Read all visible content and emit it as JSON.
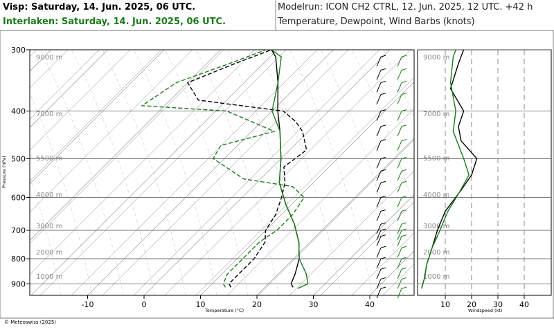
{
  "header": {
    "visp_title": "Visp: Saturday, 14. Jun. 2025, 06 UTC.",
    "interlaken_title": "Interlaken: Saturday, 14. Jun. 2025, 06 UTC.",
    "modelrun": "Modelrun: ICON CH2 CTRL, 12. Jun. 2025, 12 UTC. +42 h",
    "fields": "Temperature, Dewpoint, Wind Barbs (knots)"
  },
  "copyright": "© Meteoswiss (2025)",
  "colors": {
    "visp": "#000000",
    "interlaken": "#1a7a1a",
    "grid": "#999999"
  },
  "chart_data": [
    {
      "type": "line",
      "subtype": "skew-t",
      "xlabel": "Temperature (°C)",
      "ylabel": "Pressure (hPa)",
      "x_ticks": [
        "-10",
        "0",
        "10",
        "20",
        "30",
        "40"
      ],
      "y_ticks": [
        "300",
        "400",
        "500",
        "600",
        "700",
        "800",
        "900"
      ],
      "altitude_labels": [
        "9000 m",
        "7000 m",
        "5500 m",
        "4000 m",
        "3000 m",
        "2000 m",
        "1000 m"
      ],
      "ylim": [
        300,
        950
      ],
      "series": [
        {
          "name": "Visp",
          "kind": "temperature",
          "style": "solid",
          "points": [
            [
              25,
              915
            ],
            [
              24,
              900
            ],
            [
              23,
              860
            ],
            [
              21,
              800
            ],
            [
              18,
              740
            ],
            [
              14,
              680
            ],
            [
              9,
              620
            ],
            [
              4,
              560
            ],
            [
              0,
              500
            ],
            [
              -5,
              440
            ],
            [
              -9,
              400
            ],
            [
              -14,
              350
            ],
            [
              -19,
              310
            ],
            [
              -21,
              300
            ]
          ]
        },
        {
          "name": "Visp",
          "kind": "dewpoint",
          "style": "dashed",
          "points": [
            [
              14,
              915
            ],
            [
              13,
              900
            ],
            [
              13,
              860
            ],
            [
              13,
              800
            ],
            [
              12,
              740
            ],
            [
              10,
              700
            ],
            [
              9,
              650
            ],
            [
              7,
              600
            ],
            [
              5,
              560
            ],
            [
              2,
              520
            ],
            [
              3,
              480
            ],
            [
              -1,
              440
            ],
            [
              -4,
              420
            ],
            [
              -8,
              400
            ],
            [
              -25,
              380
            ],
            [
              -30,
              350
            ],
            [
              -25,
              320
            ],
            [
              -21,
              300
            ]
          ]
        },
        {
          "name": "Interlaken",
          "kind": "temperature",
          "style": "solid",
          "points": [
            [
              26,
              920
            ],
            [
              27,
              900
            ],
            [
              25,
              860
            ],
            [
              21,
              800
            ],
            [
              18,
              740
            ],
            [
              14,
              680
            ],
            [
              9,
              620
            ],
            [
              4,
              560
            ],
            [
              0,
              500
            ],
            [
              -5,
              440
            ],
            [
              -10,
              400
            ],
            [
              -14,
              350
            ],
            [
              -18,
              310
            ],
            [
              -21,
              300
            ]
          ]
        },
        {
          "name": "Interlaken",
          "kind": "dewpoint",
          "style": "dashed",
          "points": [
            [
              13,
              915
            ],
            [
              12,
              900
            ],
            [
              11,
              860
            ],
            [
              11,
              800
            ],
            [
              11,
              740
            ],
            [
              12,
              700
            ],
            [
              12,
              650
            ],
            [
              11,
              600
            ],
            [
              7,
              570
            ],
            [
              -3,
              550
            ],
            [
              -12,
              500
            ],
            [
              -13,
              470
            ],
            [
              -6,
              440
            ],
            [
              -18,
              400
            ],
            [
              -34,
              390
            ],
            [
              -32,
              350
            ],
            [
              -26,
              320
            ],
            [
              -22,
              300
            ]
          ]
        }
      ]
    },
    {
      "type": "line",
      "xlabel": "Windspeed (kt)",
      "x_ticks": [
        "10",
        "20",
        "30",
        "40"
      ],
      "altitude_labels": [
        "9000 m",
        "7000 m",
        "5500 m",
        "4000 m",
        "3000 m",
        "2000 m",
        "1000 m"
      ],
      "series": [
        {
          "name": "Visp",
          "points": [
            [
              1,
              920
            ],
            [
              2,
              880
            ],
            [
              3,
              820
            ],
            [
              5,
              760
            ],
            [
              7,
              700
            ],
            [
              10,
              640
            ],
            [
              16,
              580
            ],
            [
              20,
              540
            ],
            [
              22,
              500
            ],
            [
              16,
              460
            ],
            [
              15,
              430
            ],
            [
              17,
              400
            ],
            [
              12,
              360
            ],
            [
              15,
              320
            ],
            [
              17,
              300
            ]
          ]
        },
        {
          "name": "Interlaken",
          "points": [
            [
              1,
              920
            ],
            [
              2,
              880
            ],
            [
              3,
              820
            ],
            [
              5,
              760
            ],
            [
              8,
              700
            ],
            [
              11,
              640
            ],
            [
              15,
              590
            ],
            [
              19,
              540
            ],
            [
              17,
              500
            ],
            [
              13,
              440
            ],
            [
              14,
              400
            ],
            [
              12,
              350
            ],
            [
              13,
              310
            ],
            [
              14,
              300
            ]
          ]
        }
      ]
    }
  ]
}
